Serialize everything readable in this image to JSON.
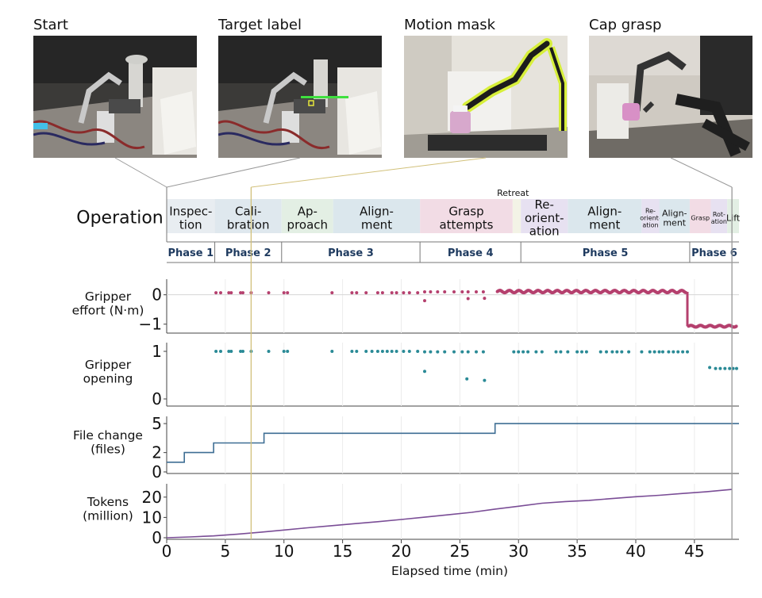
{
  "photos": [
    {
      "title": "Start",
      "image": "lab-robot-arm-start-photo"
    },
    {
      "title": "Target label",
      "image": "lab-robot-arm-target-label-photo"
    },
    {
      "title": "Motion mask",
      "image": "robot-arm-motion-mask-photo"
    },
    {
      "title": "Cap grasp",
      "image": "robot-arm-cap-grasp-photo"
    }
  ],
  "colors": {
    "effort": "#b5406e",
    "opening": "#2a8a96",
    "files": "#3e6e94",
    "tokens": "#7a4d96",
    "marker_tan": "#d2c07a",
    "marker_gray": "#999999",
    "phase_text": "#1e3a5f"
  },
  "chart_data": {
    "type": "timeline",
    "xlabel": "Elapsed time (min)",
    "xlim": [
      0,
      48.8
    ],
    "xticks": [
      0,
      5,
      10,
      15,
      20,
      25,
      30,
      35,
      40,
      45
    ],
    "markers": [
      {
        "x": 7.2,
        "color": "#d2c07a"
      },
      {
        "x": 48.2,
        "color": "#999999"
      }
    ],
    "operation": {
      "label": "Operation",
      "segments": [
        {
          "start": 0.0,
          "end": 4.1,
          "label": "Inspec-\ntion",
          "color": "#e8edf1",
          "size": "m"
        },
        {
          "start": 4.1,
          "end": 9.8,
          "label": "Cali-\nbration",
          "color": "#dfe8ee",
          "size": "m"
        },
        {
          "start": 9.8,
          "end": 14.2,
          "label": "Ap-\nproach",
          "color": "#e3efe4",
          "size": "m"
        },
        {
          "start": 14.2,
          "end": 21.6,
          "label": "Align-\nment",
          "color": "#dbe7ed",
          "size": "m"
        },
        {
          "start": 21.6,
          "end": 29.5,
          "label": "Grasp\nattempts",
          "color": "#f2dce5",
          "size": "m"
        },
        {
          "start": 29.5,
          "end": 30.2,
          "label": "",
          "color": "#f3f3e6",
          "size": "m"
        },
        {
          "start": 30.2,
          "end": 34.2,
          "label": "Re-\norient-\nation",
          "color": "#e7e1f1",
          "size": "m"
        },
        {
          "start": 34.2,
          "end": 40.5,
          "label": "Align-\nment",
          "color": "#dbe7ed",
          "size": "m"
        },
        {
          "start": 40.5,
          "end": 42.0,
          "label": "Re-\norient-\nation",
          "color": "#e7e1f1",
          "size": "xs"
        },
        {
          "start": 42.0,
          "end": 44.6,
          "label": "Align-\nment",
          "color": "#dbe7ed",
          "size": "s"
        },
        {
          "start": 44.6,
          "end": 46.4,
          "label": "Grasp",
          "color": "#f2dce5",
          "size": "xs"
        },
        {
          "start": 46.4,
          "end": 47.8,
          "label": "Rot-\nation",
          "color": "#e7e1f1",
          "size": "xs"
        },
        {
          "start": 47.8,
          "end": 48.8,
          "label": "Lift",
          "color": "#e3efe4",
          "size": "s"
        }
      ],
      "annotations": [
        {
          "x": 29.8,
          "text": "Retreat"
        }
      ]
    },
    "phases": [
      {
        "start": 0.0,
        "end": 4.1,
        "label": "Phase 1"
      },
      {
        "start": 4.1,
        "end": 9.8,
        "label": "Phase 2"
      },
      {
        "start": 9.8,
        "end": 21.6,
        "label": "Phase 3"
      },
      {
        "start": 21.6,
        "end": 30.2,
        "label": "Phase 4"
      },
      {
        "start": 30.2,
        "end": 44.6,
        "label": "Phase 5"
      },
      {
        "start": 44.6,
        "end": 48.8,
        "label": "Phase 6"
      }
    ],
    "panels": [
      {
        "id": "effort",
        "ylabel": "Gripper\neffort (N·m)",
        "kind": "scatter",
        "ylim": [
          -1.25,
          0.45
        ],
        "yticks": [
          0,
          -1
        ],
        "ytick_labels": [
          "0",
          "−1"
        ],
        "points_x": [
          4.2,
          4.6,
          5.3,
          5.5,
          6.3,
          6.5,
          7.2,
          8.7,
          10.0,
          10.3,
          14.1,
          15.8,
          16.2,
          17.0,
          18.0,
          18.4,
          19.2,
          19.6,
          20.2,
          20.7,
          21.4,
          22.0,
          22.5,
          23.1,
          23.7,
          24.5,
          25.2,
          25.7,
          26.4,
          27.0,
          22.0,
          25.7,
          27.1
        ],
        "points_y": [
          0.07,
          0.07,
          0.07,
          0.07,
          0.07,
          0.07,
          0.07,
          0.07,
          0.07,
          0.07,
          0.07,
          0.07,
          0.07,
          0.07,
          0.07,
          0.07,
          0.07,
          0.07,
          0.07,
          0.07,
          0.07,
          0.1,
          0.1,
          0.1,
          0.1,
          0.1,
          0.1,
          0.1,
          0.1,
          0.1,
          -0.2,
          -0.13,
          -0.12
        ],
        "dense": [
          {
            "x_start": 28.2,
            "x_end": 44.3,
            "y": 0.11,
            "jitter": 0.04
          },
          {
            "x_start": 44.5,
            "x_end": 48.6,
            "y": -1.07,
            "jitter": 0.03
          }
        ],
        "drop": {
          "x": 44.4,
          "y_from": 0.1,
          "y_to": -1.07
        }
      },
      {
        "id": "opening",
        "ylabel": "Gripper\nopening",
        "kind": "scatter",
        "ylim": [
          -0.1,
          1.1
        ],
        "yticks": [
          1,
          0
        ],
        "ytick_labels": [
          "1",
          "0"
        ],
        "points_x": [
          4.2,
          4.6,
          5.3,
          5.5,
          6.3,
          6.5,
          7.2,
          8.7,
          10.0,
          10.3,
          14.1,
          15.8,
          16.2,
          17.0,
          17.5,
          18.0,
          18.4,
          18.8,
          19.2,
          19.6,
          20.2,
          20.7,
          21.4,
          22.0,
          22.5,
          23.1,
          23.7,
          24.5,
          25.2,
          25.7,
          26.4,
          27.0,
          29.6,
          30.0,
          30.4,
          30.8,
          31.5,
          32.0,
          33.2,
          33.6,
          34.2,
          35.0,
          35.4,
          35.8,
          37.0,
          37.5,
          38.0,
          38.4,
          38.8,
          39.4,
          40.5,
          41.2,
          41.6,
          42.0,
          42.3,
          42.8,
          43.2,
          43.6,
          44.0,
          44.4,
          46.3,
          46.8,
          47.2,
          47.6,
          48.0,
          48.3,
          48.6,
          22.0,
          25.6,
          27.1
        ],
        "points_y": [
          1,
          1,
          1,
          1,
          1,
          1,
          1,
          1,
          1,
          1,
          1,
          1,
          1,
          1,
          1,
          1,
          1,
          1,
          1,
          1,
          1,
          1,
          1,
          0.99,
          0.99,
          0.99,
          0.99,
          0.99,
          0.99,
          0.99,
          0.99,
          0.99,
          0.99,
          0.99,
          0.99,
          0.99,
          0.99,
          0.99,
          0.99,
          0.99,
          0.99,
          0.99,
          0.99,
          0.99,
          0.99,
          0.99,
          0.99,
          0.99,
          0.99,
          0.99,
          0.99,
          0.99,
          0.99,
          0.99,
          0.99,
          0.99,
          0.99,
          0.99,
          0.99,
          0.99,
          0.66,
          0.64,
          0.64,
          0.64,
          0.64,
          0.64,
          0.64,
          0.58,
          0.42,
          0.39
        ]
      },
      {
        "id": "files",
        "ylabel": "File change\n(files)",
        "kind": "step",
        "ylim": [
          0,
          5.5
        ],
        "yticks": [
          5,
          2,
          0
        ],
        "ytick_labels": [
          "5",
          "2",
          "0"
        ],
        "x": [
          0,
          1.5,
          1.5,
          4.0,
          4.0,
          8.3,
          8.3,
          28.0,
          28.0,
          48.8
        ],
        "y": [
          1,
          1,
          2,
          2,
          3,
          3,
          4,
          4,
          5,
          5
        ]
      },
      {
        "id": "tokens",
        "ylabel": "Tokens\n(million)",
        "kind": "line",
        "ylim": [
          0,
          25
        ],
        "yticks": [
          20,
          10,
          0
        ],
        "ytick_labels": [
          "20",
          "10",
          "0"
        ],
        "x": [
          0,
          2,
          4,
          6,
          8,
          10,
          12,
          14,
          16,
          18,
          20,
          22,
          24,
          26,
          28,
          30,
          32,
          34,
          36,
          38,
          40,
          42,
          44,
          46,
          48.2
        ],
        "y": [
          0,
          0.4,
          0.9,
          1.7,
          2.7,
          3.8,
          4.9,
          5.9,
          6.9,
          7.9,
          9.0,
          10.1,
          11.3,
          12.5,
          14.1,
          15.5,
          17.0,
          17.8,
          18.4,
          19.3,
          20.2,
          20.9,
          21.8,
          22.6,
          23.8
        ]
      }
    ]
  }
}
